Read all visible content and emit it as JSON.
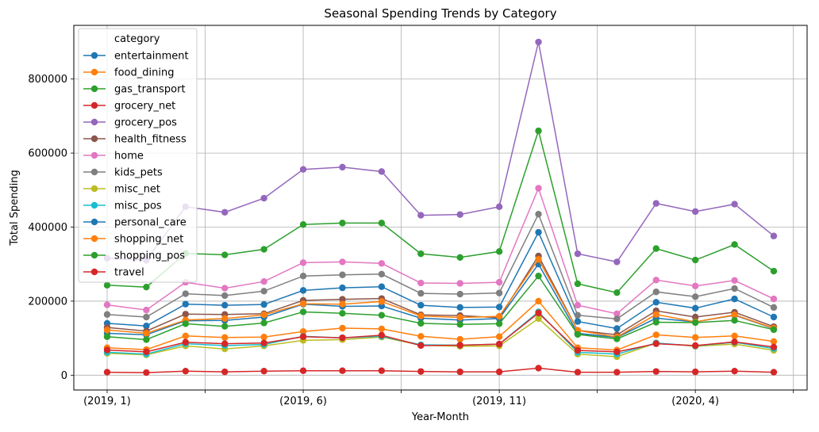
{
  "chart_data": {
    "type": "line",
    "title": "Seasonal Spending Trends by Category",
    "xlabel": "Year-Month",
    "ylabel": "Total Spending",
    "x": [
      "(2019, 1)",
      "(2019, 2)",
      "(2019, 3)",
      "(2019, 4)",
      "(2019, 5)",
      "(2019, 6)",
      "(2019, 7)",
      "(2019, 8)",
      "(2019, 9)",
      "(2019, 10)",
      "(2019, 11)",
      "(2019, 12)",
      "(2020, 1)",
      "(2020, 2)",
      "(2020, 3)",
      "(2020, 4)",
      "(2020, 5)",
      "(2020, 6)"
    ],
    "xtick_labels": [
      "(2019, 1)",
      "",
      "(2019, 6)",
      "",
      "(2019, 11)",
      "",
      "(2020, 4)",
      ""
    ],
    "xticks_index": [
      0,
      2.5,
      5,
      7.5,
      10,
      12.5,
      15,
      17.5
    ],
    "yticks": [
      0,
      200000,
      400000,
      600000,
      800000
    ],
    "ytick_labels": [
      "0",
      "200000",
      "400000",
      "600000",
      "800000"
    ],
    "ylim": [
      -40000,
      945000
    ],
    "grid": true,
    "legend": {
      "title": "category",
      "placement": "top-left"
    },
    "series": [
      {
        "name": "entertainment",
        "color": "#1f77b4",
        "values": [
          140000,
          133000,
          192000,
          189000,
          191000,
          229000,
          236000,
          239000,
          189000,
          183000,
          184000,
          386000,
          145000,
          126000,
          197000,
          181000,
          206000,
          157000
        ]
      },
      {
        "name": "food_dining",
        "color": "#ff7f0e",
        "values": [
          74000,
          69000,
          106000,
          102000,
          103000,
          118000,
          127000,
          125000,
          105000,
          97000,
          104000,
          200000,
          74000,
          68000,
          109000,
          102000,
          106000,
          91000
        ]
      },
      {
        "name": "gas_transport",
        "color": "#2ca02c",
        "values": [
          243000,
          238000,
          329000,
          325000,
          340000,
          407000,
          411000,
          411000,
          328000,
          318000,
          334000,
          660000,
          247000,
          223000,
          342000,
          311000,
          353000,
          281000
        ]
      },
      {
        "name": "grocery_net",
        "color": "#d62728",
        "values": [
          8000,
          7000,
          11000,
          9000,
          11000,
          12000,
          12000,
          12000,
          10000,
          9000,
          9000,
          19000,
          8000,
          8000,
          10000,
          9000,
          11000,
          8000
        ]
      },
      {
        "name": "grocery_pos",
        "color": "#9467bd",
        "values": [
          316000,
          310000,
          455000,
          440000,
          478000,
          556000,
          562000,
          550000,
          432000,
          434000,
          455000,
          900000,
          328000,
          306000,
          464000,
          442000,
          462000,
          376000
        ]
      },
      {
        "name": "health_fitness",
        "color": "#8c564b",
        "values": [
          129000,
          119000,
          165000,
          164000,
          166000,
          202000,
          205000,
          207000,
          163000,
          161000,
          155000,
          322000,
          121000,
          109000,
          174000,
          157000,
          170000,
          131000
        ]
      },
      {
        "name": "home",
        "color": "#e377c2",
        "values": [
          190000,
          176000,
          251000,
          235000,
          253000,
          304000,
          306000,
          302000,
          249000,
          248000,
          251000,
          505000,
          189000,
          166000,
          257000,
          241000,
          256000,
          206000
        ]
      },
      {
        "name": "kids_pets",
        "color": "#7f7f7f",
        "values": [
          164000,
          157000,
          220000,
          215000,
          227000,
          268000,
          271000,
          273000,
          221000,
          219000,
          222000,
          435000,
          162000,
          152000,
          225000,
          212000,
          234000,
          183000
        ]
      },
      {
        "name": "misc_net",
        "color": "#bcbd22",
        "values": [
          59000,
          55000,
          79000,
          71000,
          79000,
          94000,
          96000,
          103000,
          81000,
          78000,
          79000,
          153000,
          57000,
          50000,
          87000,
          78000,
          84000,
          67000
        ]
      },
      {
        "name": "misc_pos",
        "color": "#17becf",
        "values": [
          62000,
          57000,
          85000,
          80000,
          83000,
          105000,
          101000,
          105000,
          82000,
          81000,
          84000,
          171000,
          62000,
          57000,
          87000,
          79000,
          89000,
          72000
        ]
      },
      {
        "name": "personal_care",
        "color": "#1f77b4",
        "values": [
          113000,
          109000,
          147000,
          148000,
          157000,
          192000,
          186000,
          187000,
          154000,
          149000,
          153000,
          300000,
          113000,
          102000,
          154000,
          144000,
          162000,
          126000
        ]
      },
      {
        "name": "shopping_net",
        "color": "#ff7f0e",
        "values": [
          122000,
          113000,
          149000,
          153000,
          163000,
          193000,
          192000,
          199000,
          160000,
          156000,
          159000,
          313000,
          121000,
          103000,
          164000,
          144000,
          163000,
          127000
        ]
      },
      {
        "name": "shopping_pos",
        "color": "#2ca02c",
        "values": [
          104000,
          96000,
          139000,
          132000,
          141000,
          171000,
          167000,
          162000,
          140000,
          137000,
          139000,
          268000,
          110000,
          98000,
          143000,
          142000,
          148000,
          123000
        ]
      },
      {
        "name": "travel",
        "color": "#d62728",
        "values": [
          68000,
          63000,
          89000,
          85000,
          87000,
          104000,
          101000,
          108000,
          80000,
          81000,
          84000,
          168000,
          67000,
          63000,
          85000,
          80000,
          90000,
          76000
        ]
      }
    ]
  }
}
